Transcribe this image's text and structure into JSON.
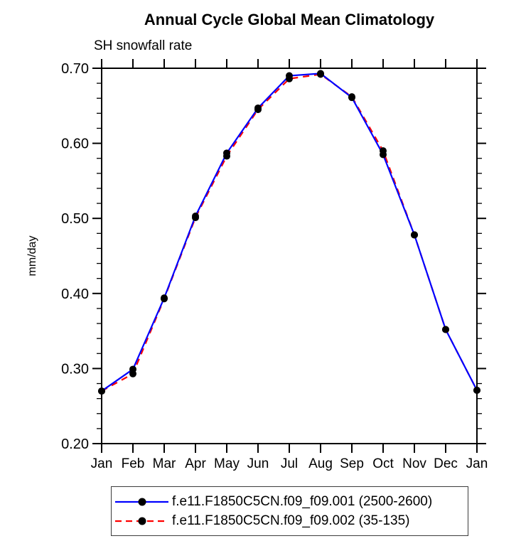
{
  "chart_data": {
    "type": "line",
    "title": "Annual Cycle Global Mean Climatology",
    "subtitle": "SH snowfall rate",
    "xlabel": "",
    "ylabel": "mm/day",
    "x_tick_labels": [
      "Jan",
      "Feb",
      "Mar",
      "Apr",
      "May",
      "Jun",
      "Jul",
      "Aug",
      "Sep",
      "Oct",
      "Nov",
      "Dec",
      "Jan"
    ],
    "y_tick_labels": [
      "0.20",
      "0.30",
      "0.40",
      "0.50",
      "0.60",
      "0.70"
    ],
    "ylim": [
      0.2,
      0.7
    ],
    "y_major_step": 0.1,
    "y_minor_step": 0.02,
    "grid": false,
    "legend_position": "bottom",
    "frame_color": "#000000",
    "series": [
      {
        "name": "f.e11.F1850C5CN.f09_f09.001 (2500-2600)",
        "color": "#0000ff",
        "style": "solid",
        "marker": "filled-circle",
        "marker_color": "#000000",
        "values": [
          0.27,
          0.299,
          0.394,
          0.503,
          0.587,
          0.647,
          0.69,
          0.693,
          0.661,
          0.585,
          0.478,
          0.352,
          0.271
        ]
      },
      {
        "name": "f.e11.F1850C5CN.f09_f09.002 (35-135)",
        "color": "#ff0000",
        "style": "dashed",
        "marker": "filled-circle",
        "marker_color": "#000000",
        "values": [
          0.27,
          0.293,
          0.393,
          0.501,
          0.583,
          0.645,
          0.686,
          0.692,
          0.662,
          0.59,
          0.478,
          0.352,
          0.271
        ]
      }
    ]
  }
}
